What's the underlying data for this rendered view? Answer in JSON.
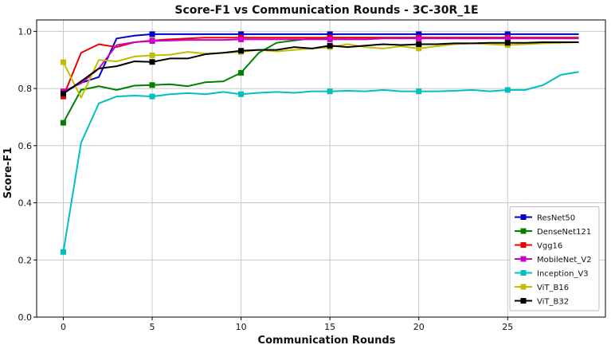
{
  "chart_data": {
    "type": "line",
    "title": "Score-F1 vs Communication Rounds - 3C-30R_1E",
    "xlabel": "Communication Rounds",
    "ylabel": "Score-F1",
    "xlim": [
      -1.5,
      30.5
    ],
    "ylim": [
      0.0,
      1.04
    ],
    "xticks": [
      0,
      5,
      10,
      15,
      20,
      25
    ],
    "yticks": [
      0.0,
      0.2,
      0.4,
      0.6,
      0.8,
      1.0
    ],
    "xtick_labels": [
      "0",
      "5",
      "10",
      "15",
      "20",
      "25"
    ],
    "ytick_labels": [
      "0.0",
      "0.2",
      "0.4",
      "0.6",
      "0.8",
      "1.0"
    ],
    "grid": true,
    "legend_position": "bottom-right",
    "marker_every": 5,
    "x": [
      0,
      1,
      2,
      3,
      4,
      5,
      6,
      7,
      8,
      9,
      10,
      11,
      12,
      13,
      14,
      15,
      16,
      17,
      18,
      19,
      20,
      21,
      22,
      23,
      24,
      25,
      26,
      27,
      28,
      29
    ],
    "series": [
      {
        "name": "ResNet50",
        "color": "#0000cc",
        "values": [
          0.785,
          0.82,
          0.84,
          0.975,
          0.985,
          0.99,
          0.99,
          0.99,
          0.99,
          0.99,
          0.99,
          0.99,
          0.99,
          0.99,
          0.99,
          0.99,
          0.99,
          0.99,
          0.99,
          0.99,
          0.99,
          0.99,
          0.99,
          0.99,
          0.99,
          0.99,
          0.99,
          0.99,
          0.99,
          0.99
        ]
      },
      {
        "name": "DenseNet121",
        "color": "#007f00",
        "values": [
          0.68,
          0.795,
          0.808,
          0.795,
          0.81,
          0.812,
          0.815,
          0.808,
          0.822,
          0.825,
          0.855,
          0.925,
          0.96,
          0.968,
          0.975,
          0.978,
          0.978,
          0.978,
          0.978,
          0.978,
          0.978,
          0.978,
          0.978,
          0.978,
          0.978,
          0.978,
          0.978,
          0.978,
          0.978,
          0.978
        ]
      },
      {
        "name": "Vgg16",
        "color": "#ee0000",
        "values": [
          0.772,
          0.925,
          0.955,
          0.945,
          0.962,
          0.968,
          0.972,
          0.975,
          0.978,
          0.978,
          0.978,
          0.978,
          0.978,
          0.978,
          0.978,
          0.978,
          0.978,
          0.978,
          0.978,
          0.978,
          0.978,
          0.978,
          0.978,
          0.978,
          0.978,
          0.978,
          0.978,
          0.978,
          0.978,
          0.978
        ]
      },
      {
        "name": "MobileNet_V2",
        "color": "#cc00cc",
        "values": [
          0.79,
          0.818,
          0.87,
          0.952,
          0.962,
          0.966,
          0.968,
          0.97,
          0.97,
          0.97,
          0.972,
          0.972,
          0.972,
          0.972,
          0.972,
          0.972,
          0.972,
          0.972,
          0.975,
          0.975,
          0.975,
          0.975,
          0.975,
          0.975,
          0.975,
          0.975,
          0.975,
          0.975,
          0.975,
          0.975
        ]
      },
      {
        "name": "Inception_V3",
        "color": "#00bfbf",
        "values": [
          0.228,
          0.61,
          0.748,
          0.772,
          0.775,
          0.772,
          0.78,
          0.784,
          0.78,
          0.788,
          0.78,
          0.785,
          0.788,
          0.785,
          0.79,
          0.79,
          0.792,
          0.79,
          0.795,
          0.79,
          0.79,
          0.79,
          0.792,
          0.795,
          0.79,
          0.795,
          0.795,
          0.812,
          0.848,
          0.858
        ]
      },
      {
        "name": "ViT_B16",
        "color": "#bfbf00",
        "values": [
          0.892,
          0.768,
          0.9,
          0.895,
          0.912,
          0.916,
          0.918,
          0.928,
          0.922,
          0.925,
          0.928,
          0.935,
          0.93,
          0.935,
          0.94,
          0.945,
          0.955,
          0.945,
          0.94,
          0.948,
          0.94,
          0.948,
          0.955,
          0.958,
          0.955,
          0.952,
          0.955,
          0.958,
          0.96,
          0.962
        ]
      },
      {
        "name": "ViT_B32",
        "color": "#000000",
        "values": [
          0.782,
          0.825,
          0.87,
          0.878,
          0.895,
          0.893,
          0.905,
          0.905,
          0.92,
          0.925,
          0.932,
          0.935,
          0.935,
          0.945,
          0.94,
          0.95,
          0.945,
          0.95,
          0.955,
          0.952,
          0.955,
          0.955,
          0.958,
          0.958,
          0.96,
          0.96,
          0.96,
          0.962,
          0.962,
          0.962
        ]
      }
    ]
  }
}
